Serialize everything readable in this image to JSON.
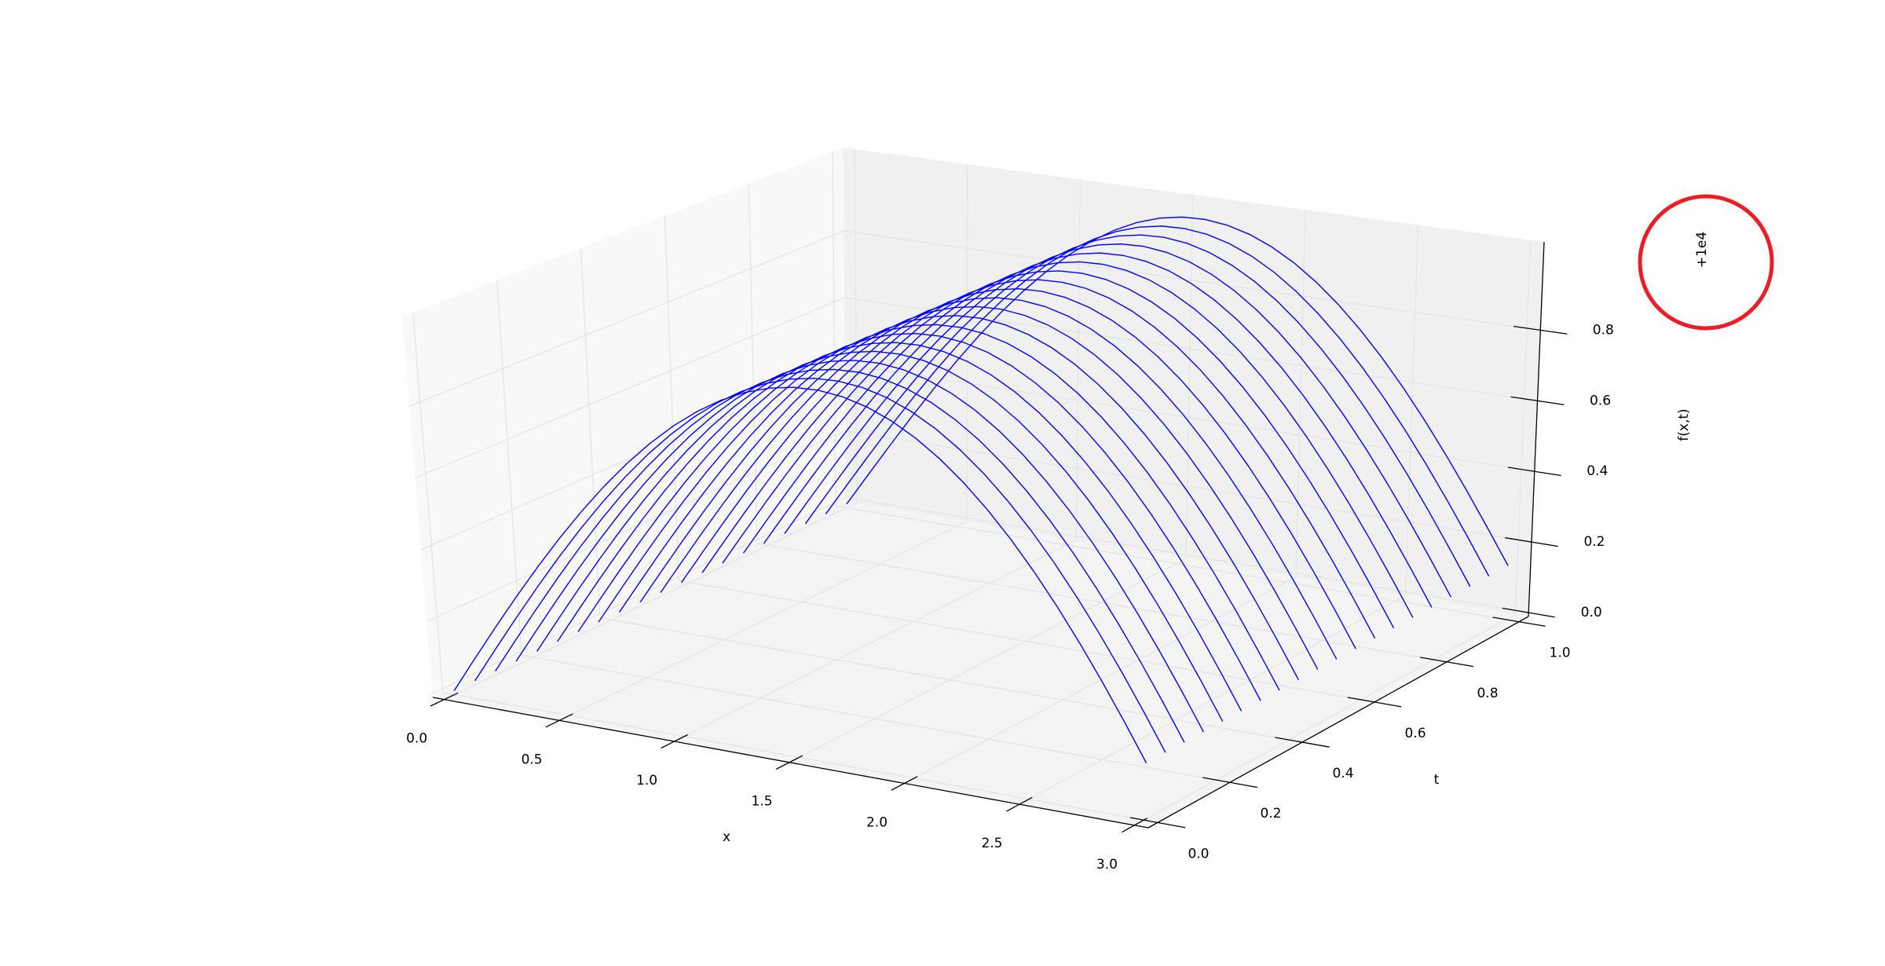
{
  "chart_data": {
    "type": "wireframe-3d",
    "xlabel": "x",
    "ylabel": "t",
    "zlabel": "f(x,t)",
    "z_offset_label": "+1e4",
    "z_offset": 10000,
    "xlim": [
      -0.05,
      3.06
    ],
    "tlim": [
      -0.026,
      1.026
    ],
    "zlim": [
      -0.011,
      1.05
    ],
    "x_ticks": [
      "0.0",
      "0.5",
      "1.0",
      "1.5",
      "2.0",
      "2.5",
      "3.0"
    ],
    "t_ticks": [
      "0.0",
      "0.2",
      "0.4",
      "0.6",
      "0.8",
      "1.0"
    ],
    "z_ticks": [
      "0.0",
      "0.2",
      "0.4",
      "0.6",
      "0.8"
    ],
    "grid": true,
    "line_color": "#0000ff",
    "x": [
      0,
      0.1,
      0.2,
      0.3,
      0.4,
      0.5,
      0.6,
      0.7,
      0.8,
      0.9,
      1.0,
      1.1,
      1.2,
      1.3,
      1.4,
      1.5,
      1.6,
      1.7,
      1.8,
      1.9,
      2.0,
      2.1,
      2.2,
      2.3,
      2.4,
      2.5,
      2.6,
      2.7,
      2.8,
      2.9,
      3.0
    ],
    "t": [
      0,
      0.053,
      0.105,
      0.158,
      0.211,
      0.263,
      0.316,
      0.368,
      0.421,
      0.474,
      0.526,
      0.579,
      0.632,
      0.684,
      0.737,
      0.789,
      0.842,
      0.895,
      0.947,
      1.0
    ],
    "z_profile": [
      0,
      0.0998,
      0.1987,
      0.2955,
      0.3894,
      0.4794,
      0.5646,
      0.6442,
      0.7174,
      0.7833,
      0.8415,
      0.8912,
      0.932,
      0.9636,
      0.9854,
      0.9975,
      0.9996,
      0.9917,
      0.9738,
      0.9463,
      0.9093,
      0.8632,
      0.8085,
      0.7457,
      0.6755,
      0.5985,
      0.5155,
      0.4274,
      0.335,
      0.2392,
      0.1411
    ]
  },
  "annotation": {
    "shape": "circle",
    "color": "#ee1c24"
  }
}
